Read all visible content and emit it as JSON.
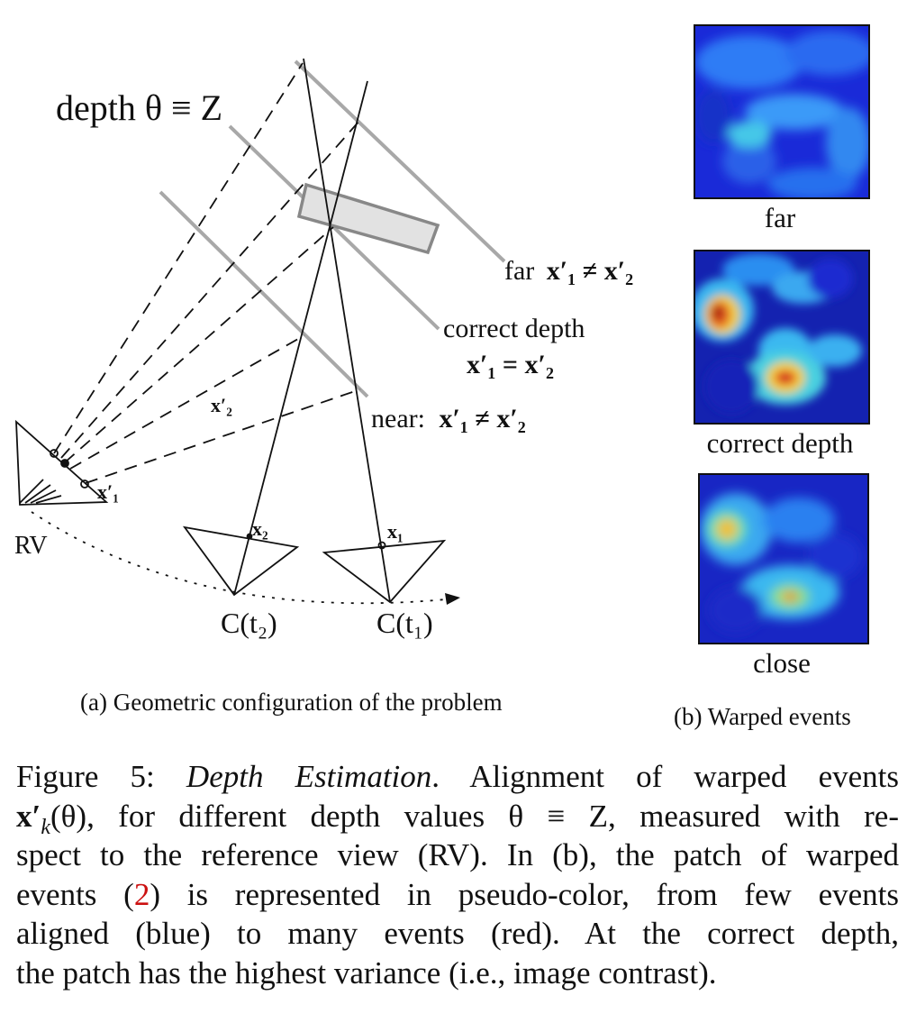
{
  "diagram": {
    "depth_label": "depth θ ≡ Z",
    "far_label": "far x′₁ ≠ x′₂",
    "far_word": "far",
    "far_math": "x′₁ ≠ x′₂",
    "correct_label_1": "correct depth",
    "correct_label_2": "x′₁ = x′₂",
    "near_word": "near:",
    "near_math": "x′₁ ≠ x′₂",
    "rv_label": "RV",
    "x2_prime": "x′₂",
    "x1_prime": "x′₁",
    "x2": "x₂",
    "x1": "x₁",
    "cam2": "C(t₂)",
    "cam1": "C(t₁)"
  },
  "patches": {
    "far": "far",
    "correct": "correct depth",
    "close": "close"
  },
  "subcaptions": {
    "a": "(a) Geometric configuration of the problem",
    "b": "(b) Warped events"
  },
  "caption": {
    "l1_a": "Figure 5: ",
    "l1_b": "Depth Estimation",
    "l1_c": ". Alignment of warped events",
    "l2_a": "x′",
    "l2_b": "k",
    "l2_c": "(θ), for different depth values θ ≡ Z, measured with re-",
    "l3": "spect to the reference view (RV). In (b), the patch of warped",
    "l4_a": "events (",
    "l4_ref": "2",
    "l4_b": ") is represented in pseudo-color, from few events",
    "l5": "aligned (blue) to many events (red). At the correct depth,",
    "l6": "the patch has the highest variance (i.e., image contrast)."
  },
  "colors": {
    "gray_line": "#a8a8a8",
    "box_fill": "#e2e2e2",
    "ref_red": "#cc1111"
  }
}
